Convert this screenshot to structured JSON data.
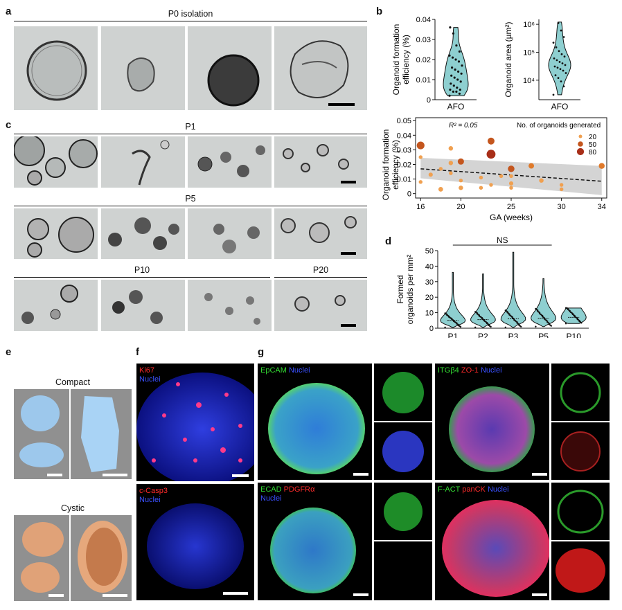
{
  "panels": {
    "a": {
      "letter": "a",
      "header": "P0 isolation"
    },
    "b": {
      "letter": "b"
    },
    "c": {
      "letter": "c",
      "headers": {
        "p1": "P1",
        "p5": "P5",
        "p10": "P10",
        "p20": "P20"
      }
    },
    "d": {
      "letter": "d"
    },
    "e": {
      "letter": "e",
      "compact": "Compact",
      "cystic": "Cystic"
    },
    "f": {
      "letter": "f",
      "top": {
        "marker": "Ki67",
        "nuclei": "Nuclei",
        "marker_color": "#ff2a2a"
      },
      "bottom": {
        "marker": "c-Casp3",
        "nuclei": "Nuclei",
        "marker_color": "#ff2a2a"
      }
    },
    "g": {
      "letter": "g",
      "tl": {
        "m1": "EpCAM",
        "m2": "Nuclei"
      },
      "tr": {
        "m1": "ITGβ4",
        "m2": "ZO-1",
        "m3": "Nuclei"
      },
      "bl": {
        "m1": "ECAD",
        "m2": "PDGFRα",
        "m3": "Nuclei"
      },
      "br": {
        "m1": "F-ACT",
        "m2": "panCK",
        "m3": "Nuclei"
      }
    },
    "colors": {
      "nuclei": "#3a50ff",
      "green": "#33dd33",
      "red": "#ff2a2a",
      "violin_fill": "#8ecfd0",
      "trend_band": "#cfcfcf",
      "point_color": "#d97a2b"
    }
  },
  "chart_data": [
    {
      "id": "b-left",
      "type": "violin",
      "ylabel": "Organoid formation efficiency (%)",
      "categories": [
        "AFO"
      ],
      "ylim": [
        0,
        0.04
      ],
      "yticks": [
        "0",
        "0.01",
        "0.02",
        "0.03",
        "0.04"
      ],
      "values": [
        0.002,
        0.003,
        0.004,
        0.004,
        0.005,
        0.005,
        0.006,
        0.007,
        0.008,
        0.009,
        0.01,
        0.011,
        0.012,
        0.013,
        0.014,
        0.015,
        0.016,
        0.017,
        0.019,
        0.02,
        0.021,
        0.022,
        0.024,
        0.027,
        0.033,
        0.036
      ]
    },
    {
      "id": "b-right",
      "type": "violin",
      "log_y": true,
      "ylabel": "Organoid area (µm²)",
      "categories": [
        "AFO"
      ],
      "ylim": [
        2000,
        1500000
      ],
      "yticks": [
        "10⁴",
        "10⁵",
        "10⁶"
      ],
      "values": [
        3000,
        6000,
        9000,
        12000,
        15000,
        18000,
        22000,
        25000,
        28000,
        31000,
        35000,
        40000,
        45000,
        52000,
        60000,
        70000,
        85000,
        110000,
        150000,
        220000,
        350000,
        600000,
        1100000
      ]
    },
    {
      "id": "b-scatter",
      "type": "scatter",
      "xlabel": "GA (weeks)",
      "ylabel": "Organoid formation efficiency (%)",
      "xlim": [
        15.5,
        34.5
      ],
      "ylim": [
        -0.003,
        0.052
      ],
      "xticks": [
        16,
        20,
        25,
        30,
        34
      ],
      "yticks": [
        "0",
        "0.01",
        "0.02",
        "0.03",
        "0.04",
        "0.05"
      ],
      "annotation": "R² = 0.05",
      "legend_title": "No. of organoids generated",
      "legend": [
        {
          "label": "20",
          "color": "#f0a050"
        },
        {
          "label": "50",
          "color": "#c4561e"
        },
        {
          "label": "80",
          "color": "#a82e18"
        }
      ],
      "trend": {
        "x": [
          16,
          34
        ],
        "y": [
          0.017,
          0.0085
        ],
        "band_low": [
          0.0105,
          -0.001
        ],
        "band_high": [
          0.0245,
          0.019
        ]
      },
      "points": [
        {
          "x": 16,
          "y": 0.033,
          "n": 55
        },
        {
          "x": 16,
          "y": 0.025,
          "n": 5
        },
        {
          "x": 16,
          "y": 0.008,
          "n": 5
        },
        {
          "x": 17,
          "y": 0.013,
          "n": 8
        },
        {
          "x": 18,
          "y": 0.003,
          "n": 12
        },
        {
          "x": 18,
          "y": 0.017,
          "n": 5
        },
        {
          "x": 19,
          "y": 0.031,
          "n": 10
        },
        {
          "x": 19,
          "y": 0.021,
          "n": 10
        },
        {
          "x": 19,
          "y": 0.014,
          "n": 5
        },
        {
          "x": 20,
          "y": 0.022,
          "n": 30
        },
        {
          "x": 20,
          "y": 0.009,
          "n": 5
        },
        {
          "x": 20,
          "y": 0.004,
          "n": 10
        },
        {
          "x": 22,
          "y": 0.011,
          "n": 5
        },
        {
          "x": 22,
          "y": 0.004,
          "n": 5
        },
        {
          "x": 23,
          "y": 0.036,
          "n": 40
        },
        {
          "x": 23,
          "y": 0.027,
          "n": 80
        },
        {
          "x": 23,
          "y": 0.006,
          "n": 5
        },
        {
          "x": 24,
          "y": 0.012,
          "n": 5
        },
        {
          "x": 25,
          "y": 0.017,
          "n": 35
        },
        {
          "x": 25,
          "y": 0.012,
          "n": 5
        },
        {
          "x": 25,
          "y": 0.007,
          "n": 8
        },
        {
          "x": 25,
          "y": 0.004,
          "n": 5
        },
        {
          "x": 27,
          "y": 0.019,
          "n": 20
        },
        {
          "x": 28,
          "y": 0.009,
          "n": 10
        },
        {
          "x": 30,
          "y": 0.006,
          "n": 5
        },
        {
          "x": 30,
          "y": 0.003,
          "n": 5
        },
        {
          "x": 34,
          "y": 0.019,
          "n": 25
        }
      ]
    },
    {
      "id": "d",
      "type": "violin",
      "ylabel": "Formed organoids per mm²",
      "categories": [
        "P1",
        "P2",
        "P3",
        "P5",
        "P10"
      ],
      "ylim": [
        0,
        50
      ],
      "yticks": [
        "0",
        "10",
        "20",
        "30",
        "40",
        "50"
      ],
      "significance": "NS",
      "series": [
        {
          "name": "P1",
          "median": 5,
          "max": 36,
          "min": 0.5
        },
        {
          "name": "P2",
          "median": 5.5,
          "max": 35,
          "min": 0.5
        },
        {
          "name": "P3",
          "median": 6,
          "max": 49,
          "min": 0.5
        },
        {
          "name": "P5",
          "median": 6.5,
          "max": 32,
          "min": 1
        },
        {
          "name": "P10",
          "median": 7,
          "max": 13,
          "min": 3
        }
      ]
    }
  ]
}
